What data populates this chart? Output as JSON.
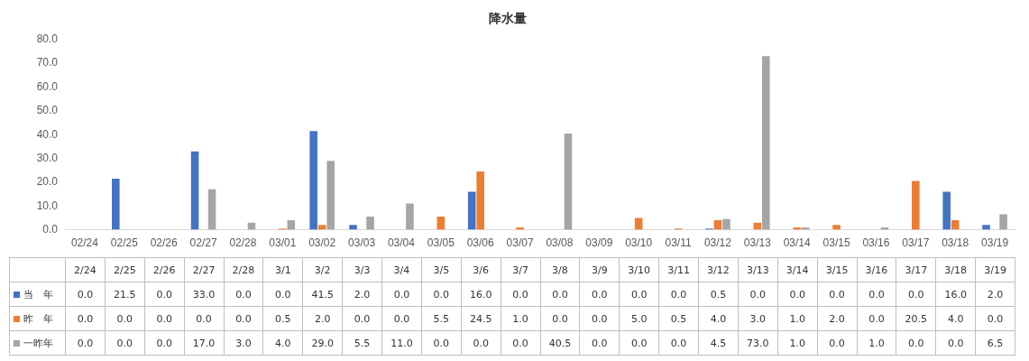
{
  "chart_data": {
    "type": "bar",
    "title": "降水量",
    "categories": [
      "02/24",
      "02/25",
      "02/26",
      "02/27",
      "02/28",
      "03/01",
      "03/02",
      "03/03",
      "03/04",
      "03/05",
      "03/06",
      "03/07",
      "03/08",
      "03/09",
      "03/10",
      "03/11",
      "03/12",
      "03/13",
      "03/14",
      "03/15",
      "03/16",
      "03/17",
      "03/18",
      "03/19"
    ],
    "series": [
      {
        "name": "当　年",
        "color": "#4472c4",
        "values": [
          0,
          21.5,
          0,
          33,
          0,
          0,
          41.5,
          2,
          0,
          0,
          16,
          0,
          0,
          0,
          0,
          0,
          0.5,
          0,
          0,
          0,
          0,
          0,
          16,
          2
        ],
        "value_labels": [
          "0.0",
          "21.5",
          "0.0",
          "33.0",
          "0.0",
          "0.0",
          "41.5",
          "2.0",
          "0.0",
          "0.0",
          "16.0",
          "0.0",
          "0.0",
          "0.0",
          "0.0",
          "0.0",
          "0.5",
          "0.0",
          "0.0",
          "0.0",
          "0.0",
          "0.0",
          "16.0",
          "2.0"
        ]
      },
      {
        "name": "昨　年",
        "color": "#ed7d31",
        "values": [
          0,
          0,
          0,
          0,
          0,
          0.5,
          2,
          0,
          0,
          5.5,
          24.5,
          1,
          0,
          0,
          5,
          0.5,
          4,
          3,
          1,
          2,
          0,
          20.5,
          4,
          0
        ],
        "value_labels": [
          "0.0",
          "0.0",
          "0.0",
          "0.0",
          "0.0",
          "0.5",
          "2.0",
          "0.0",
          "0.0",
          "5.5",
          "24.5",
          "1.0",
          "0.0",
          "0.0",
          "5.0",
          "0.5",
          "4.0",
          "3.0",
          "1.0",
          "2.0",
          "0.0",
          "20.5",
          "4.0",
          "0.0"
        ]
      },
      {
        "name": "一昨年",
        "color": "#a5a5a5",
        "values": [
          0,
          0,
          0,
          17,
          3,
          4,
          29,
          5.5,
          11,
          0,
          0,
          0,
          40.5,
          0,
          0,
          0,
          4.5,
          73,
          1,
          0,
          1,
          0,
          0,
          6.5
        ],
        "value_labels": [
          "0.0",
          "0.0",
          "0.0",
          "17.0",
          "3.0",
          "4.0",
          "29.0",
          "5.5",
          "11.0",
          "0.0",
          "0.0",
          "0.0",
          "40.5",
          "0.0",
          "0.0",
          "0.0",
          "4.5",
          "73.0",
          "1.0",
          "0.0",
          "1.0",
          "0.0",
          "0.0",
          "6.5"
        ]
      }
    ],
    "annotations": [
      "2/24",
      "2/25",
      "2/26",
      "2/27",
      "2/28",
      "3/1",
      "3/2",
      "3/3",
      "3/4",
      "3/5",
      "3/6",
      "3/7",
      "3/8",
      "3/9",
      "3/10",
      "3/11",
      "3/12",
      "3/13",
      "3/14",
      "3/15",
      "3/16",
      "3/17",
      "3/18",
      "3/19"
    ],
    "ylim": [
      0,
      80
    ],
    "yticks": [
      {
        "value": 0,
        "label": "0.0"
      },
      {
        "value": 10,
        "label": "10.0"
      },
      {
        "value": 20,
        "label": "20.0"
      },
      {
        "value": 30,
        "label": "30.0"
      },
      {
        "value": 40,
        "label": "40.0"
      },
      {
        "value": 50,
        "label": "50.0"
      },
      {
        "value": 60,
        "label": "60.0"
      },
      {
        "value": 70,
        "label": "70.0"
      },
      {
        "value": 80,
        "label": "80.0"
      }
    ],
    "grid": false,
    "legend": "bottom"
  }
}
